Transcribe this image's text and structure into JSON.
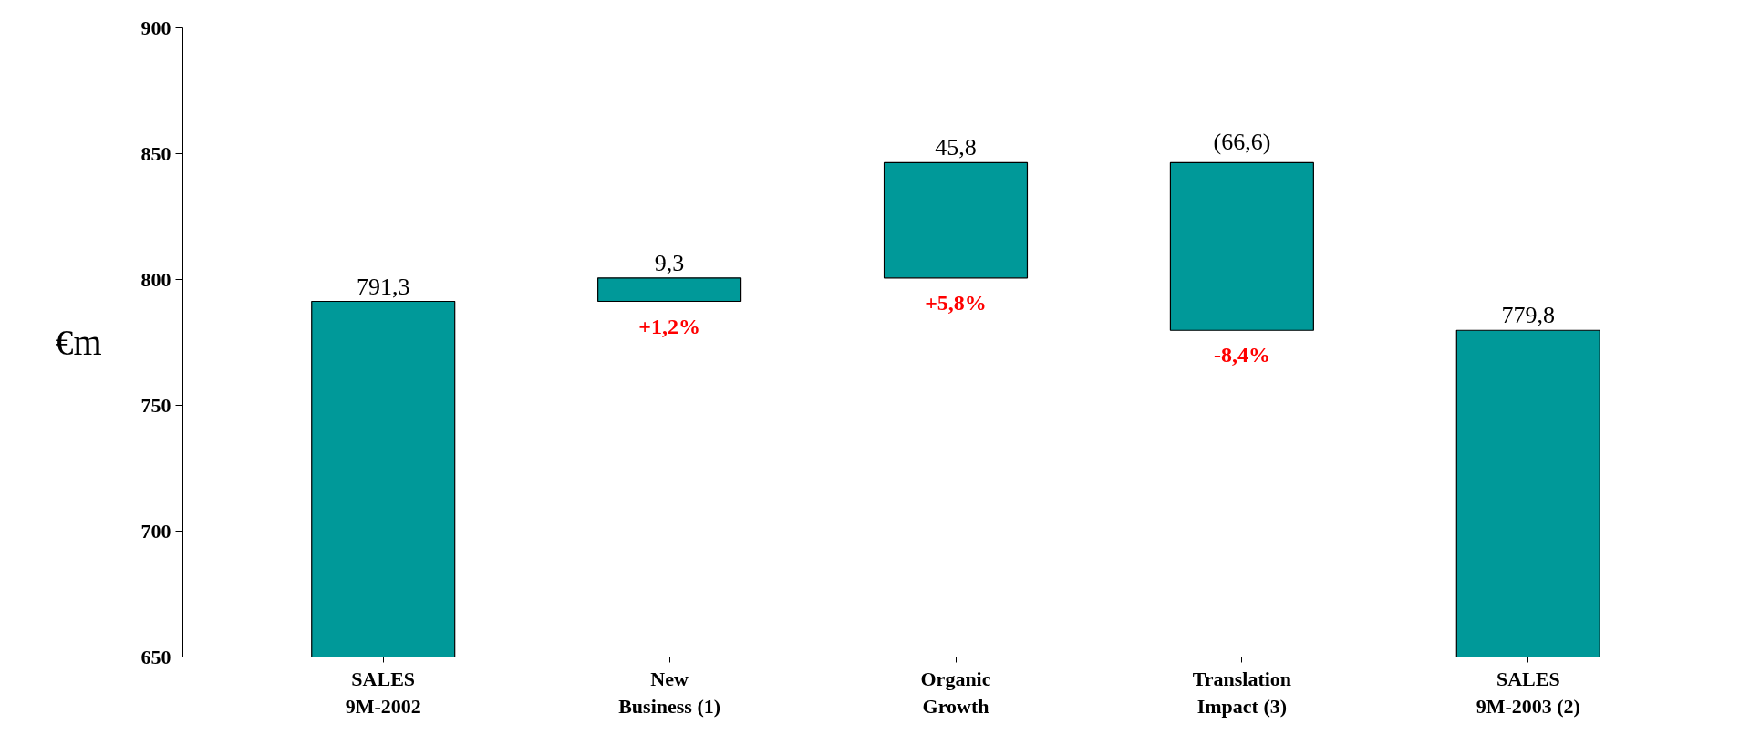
{
  "chart_data": {
    "type": "bar",
    "ylabel": "€m",
    "categories": [
      "SALES\n9M-2002",
      "New\nBusiness (1)",
      "Organic\nGrowth",
      "Translation\nImpact (3)",
      "SALES\n9M-2003 (2)"
    ],
    "values": [
      791.3,
      9.3,
      45.8,
      -66.6,
      779.8
    ],
    "base": [
      0,
      791.3,
      800.6,
      846.4,
      0
    ],
    "value_labels": [
      "791,3",
      "9,3",
      "45,8",
      "(66,6)",
      "779,8"
    ],
    "color": "#009999",
    "ylim": [
      650,
      900
    ],
    "yticks": [
      650,
      700,
      750,
      800,
      850,
      900
    ],
    "grid": false,
    "annotations": [
      "+1,2%",
      "+5,8%",
      "-8,4%"
    ]
  }
}
